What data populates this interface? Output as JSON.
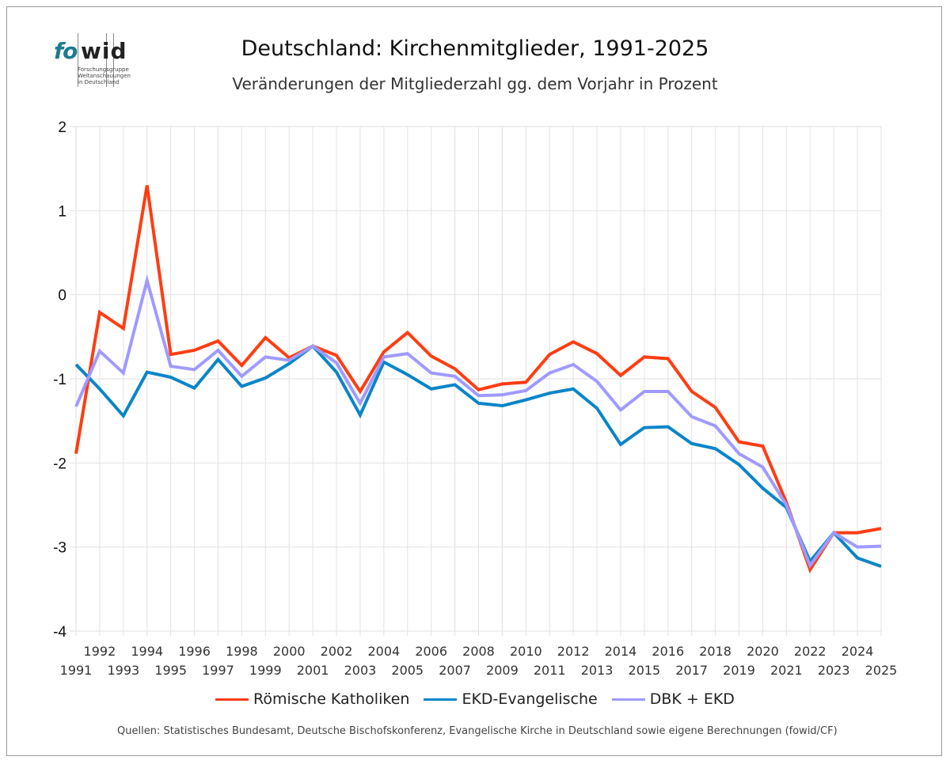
{
  "logo": {
    "part1": "fo",
    "part2": "wid",
    "tagline": "Forschungsgruppe\nWeltanschauungen\nin Deutschland"
  },
  "chart_data": {
    "type": "line",
    "title": "Deutschland: Kirchenmitglieder, 1991-2025",
    "subtitle": "Veränderungen der Mitgliederzahl gg. dem Vorjahr in Prozent",
    "xlabel": "",
    "ylabel": "",
    "ylim": [
      -4,
      2
    ],
    "yticks": [
      2,
      1,
      0,
      -1,
      -2,
      -3,
      -4
    ],
    "grid": true,
    "legend_position": "bottom",
    "x": [
      1991,
      1992,
      1993,
      1994,
      1995,
      1996,
      1997,
      1998,
      1999,
      2000,
      2001,
      2002,
      2003,
      2004,
      2005,
      2006,
      2007,
      2008,
      2009,
      2010,
      2011,
      2012,
      2013,
      2014,
      2015,
      2016,
      2017,
      2018,
      2019,
      2020,
      2021,
      2022,
      2023,
      2024,
      2025
    ],
    "series": [
      {
        "name": "Römische Katholiken",
        "color": "#ff3d12",
        "values": [
          -1.89,
          -0.21,
          -0.4,
          1.3,
          -0.71,
          -0.66,
          -0.55,
          -0.84,
          -0.51,
          -0.75,
          -0.61,
          -0.72,
          -1.15,
          -0.68,
          -0.45,
          -0.73,
          -0.88,
          -1.13,
          -1.06,
          -1.04,
          -0.71,
          -0.56,
          -0.7,
          -0.96,
          -0.74,
          -0.76,
          -1.15,
          -1.34,
          -1.75,
          -1.8,
          -2.47,
          -3.27,
          -2.83,
          -2.83,
          -2.78
        ]
      },
      {
        "name": "EKD-Evangelische",
        "color": "#0a85c8",
        "values": [
          -0.83,
          -1.12,
          -1.44,
          -0.92,
          -0.98,
          -1.11,
          -0.77,
          -1.09,
          -0.99,
          -0.82,
          -0.61,
          -0.92,
          -1.43,
          -0.8,
          -0.95,
          -1.12,
          -1.07,
          -1.29,
          -1.32,
          -1.25,
          -1.17,
          -1.12,
          -1.35,
          -1.78,
          -1.58,
          -1.57,
          -1.77,
          -1.83,
          -2.02,
          -2.3,
          -2.53,
          -3.17,
          -2.83,
          -3.13,
          -3.23
        ]
      },
      {
        "name": "DBK + EKD",
        "color": "#a09aff",
        "values": [
          -1.33,
          -0.67,
          -0.93,
          0.17,
          -0.85,
          -0.89,
          -0.66,
          -0.97,
          -0.74,
          -0.78,
          -0.61,
          -0.81,
          -1.29,
          -0.74,
          -0.7,
          -0.93,
          -0.97,
          -1.2,
          -1.19,
          -1.14,
          -0.93,
          -0.83,
          -1.03,
          -1.37,
          -1.15,
          -1.15,
          -1.45,
          -1.56,
          -1.89,
          -2.05,
          -2.5,
          -3.22,
          -2.83,
          -3.0,
          -2.99
        ]
      }
    ]
  },
  "source": "Quellen: Statistisches Bundesamt, Deutsche Bischofskonferenz, Evangelische Kirche in Deutschland sowie eigene Berechnungen (fowid/CF)"
}
